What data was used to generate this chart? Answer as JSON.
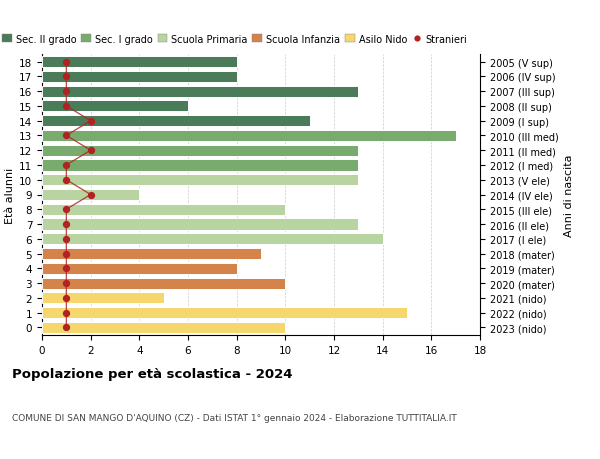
{
  "ages": [
    18,
    17,
    16,
    15,
    14,
    13,
    12,
    11,
    10,
    9,
    8,
    7,
    6,
    5,
    4,
    3,
    2,
    1,
    0
  ],
  "values": [
    8,
    8,
    13,
    6,
    11,
    17,
    13,
    13,
    13,
    4,
    10,
    13,
    14,
    9,
    8,
    10,
    5,
    15,
    10
  ],
  "stranieri_vals": [
    1,
    1,
    1,
    1,
    2,
    1,
    2,
    1,
    1,
    2,
    1,
    1,
    1,
    1,
    1,
    1,
    1,
    1,
    1
  ],
  "bar_colors": [
    "#4a7c59",
    "#4a7c59",
    "#4a7c59",
    "#4a7c59",
    "#4a7c59",
    "#7aab6e",
    "#7aab6e",
    "#7aab6e",
    "#b8d4a0",
    "#b8d4a0",
    "#b8d4a0",
    "#b8d4a0",
    "#b8d4a0",
    "#d4834a",
    "#d4834a",
    "#d4834a",
    "#f5d76e",
    "#f5d76e",
    "#f5d76e"
  ],
  "right_labels": [
    "2005 (V sup)",
    "2006 (IV sup)",
    "2007 (III sup)",
    "2008 (II sup)",
    "2009 (I sup)",
    "2010 (III med)",
    "2011 (II med)",
    "2012 (I med)",
    "2013 (V ele)",
    "2014 (IV ele)",
    "2015 (III ele)",
    "2016 (II ele)",
    "2017 (I ele)",
    "2018 (mater)",
    "2019 (mater)",
    "2020 (mater)",
    "2021 (nido)",
    "2022 (nido)",
    "2023 (nido)"
  ],
  "legend_labels": [
    "Sec. II grado",
    "Sec. I grado",
    "Scuola Primaria",
    "Scuola Infanzia",
    "Asilo Nido",
    "Stranieri"
  ],
  "legend_colors": [
    "#4a7c59",
    "#7aab6e",
    "#b8d4a0",
    "#d4834a",
    "#f5d76e",
    "#b22222"
  ],
  "ylabel_left": "Età alunni",
  "ylabel_right": "Anni di nascita",
  "title": "Popolazione per età scolastica - 2024",
  "subtitle": "COMUNE DI SAN MANGO D'AQUINO (CZ) - Dati ISTAT 1° gennaio 2024 - Elaborazione TUTTITALIA.IT",
  "xlim_max": 18,
  "xticks": [
    0,
    2,
    4,
    6,
    8,
    10,
    12,
    14,
    16,
    18
  ],
  "stranieri_color": "#b22222",
  "bg_color": "#ffffff",
  "grid_color": "#cccccc"
}
